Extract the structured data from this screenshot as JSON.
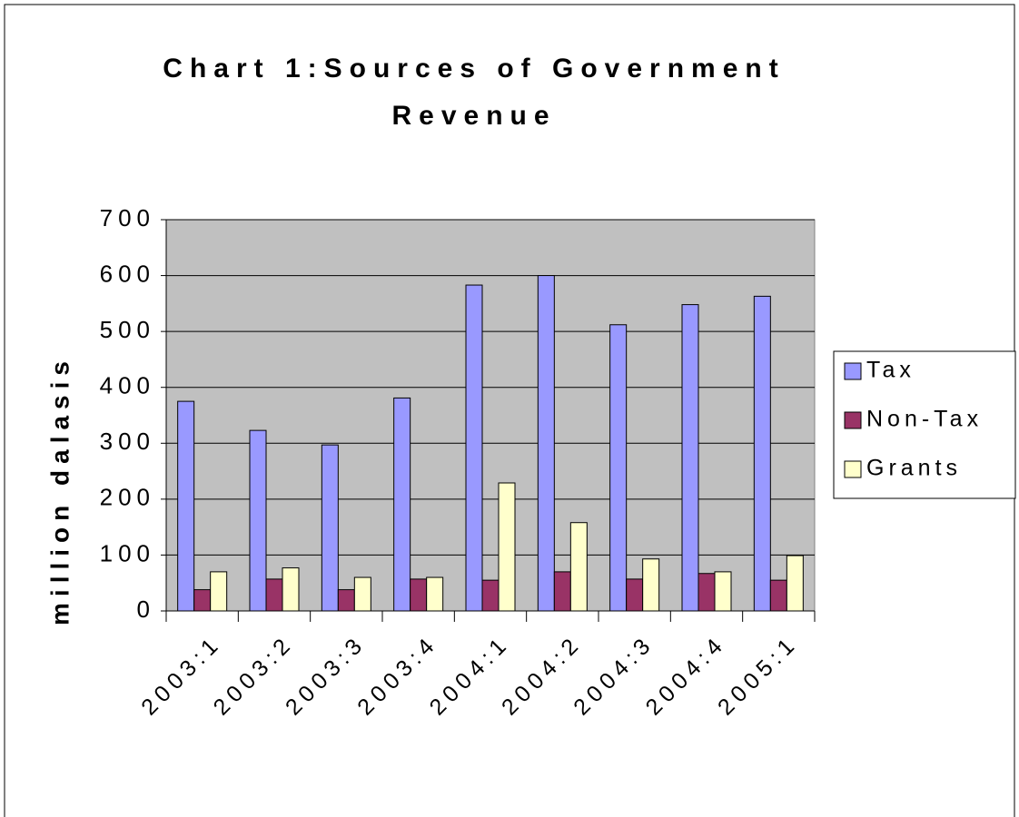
{
  "chart_data": {
    "type": "bar",
    "title": "Chart 1:Sources of Government Revenue",
    "y_label": "million dalasis",
    "categories": [
      "2003:1",
      "2003:2",
      "2003:3",
      "2003:4",
      "2004:1",
      "2004:2",
      "2004:3",
      "2004:4",
      "2005:1"
    ],
    "series": [
      {
        "name": "Tax",
        "color": "#9999ff",
        "values": [
          375,
          323,
          297,
          381,
          583,
          600,
          512,
          548,
          563
        ]
      },
      {
        "name": "Non-Tax",
        "color": "#993366",
        "values": [
          38,
          57,
          38,
          57,
          55,
          70,
          57,
          67,
          55
        ]
      },
      {
        "name": "Grants",
        "color": "#ffffcc",
        "values": [
          70,
          77,
          60,
          60,
          229,
          158,
          93,
          70,
          99
        ]
      }
    ],
    "ylim": [
      0,
      700
    ],
    "yticks": [
      0,
      100,
      200,
      300,
      400,
      500,
      600,
      700
    ],
    "grid": true,
    "legend": "right",
    "plot_background": "#c0c0c0"
  }
}
